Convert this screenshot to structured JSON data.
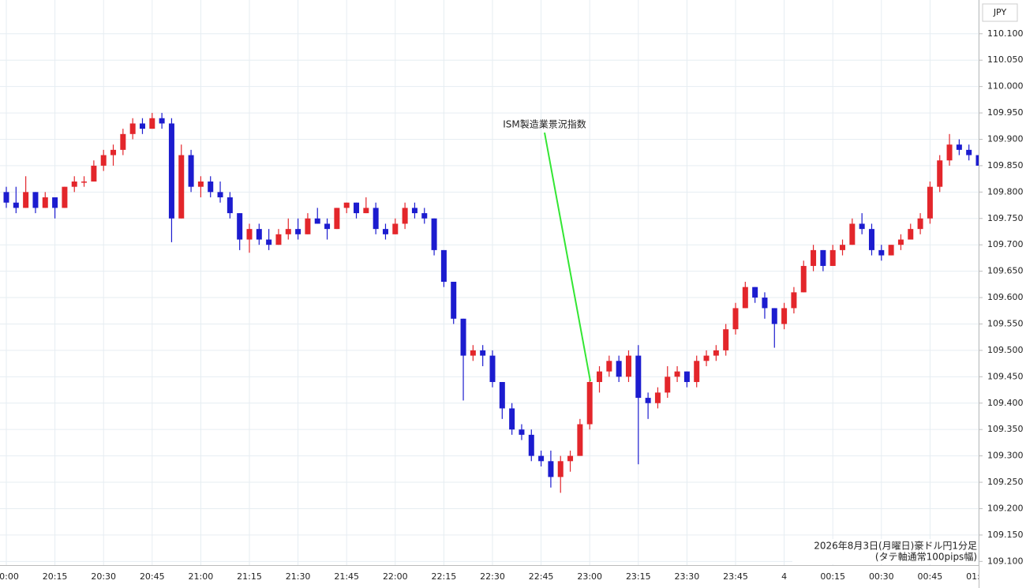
{
  "chart_data": {
    "type": "candlestick",
    "currency": "JPY",
    "annotation": "ISM製造業景況指数",
    "note": [
      "2026年8月3日(月曜日)豪ドル円1分足",
      "(タテ軸通常100pips幅)"
    ],
    "up_color": "#e3262b",
    "down_color": "#1c1ccf",
    "grid": true,
    "x": [
      "20:00",
      "20:03",
      "20:06",
      "20:09",
      "20:12",
      "20:15",
      "20:18",
      "20:21",
      "20:24",
      "20:27",
      "20:30",
      "20:33",
      "20:36",
      "20:39",
      "20:42",
      "20:45",
      "20:48",
      "20:51",
      "20:54",
      "20:57",
      "21:00",
      "21:03",
      "21:06",
      "21:09",
      "21:12",
      "21:15",
      "21:18",
      "21:21",
      "21:24",
      "21:27",
      "21:30",
      "21:33",
      "21:36",
      "21:39",
      "21:42",
      "21:45",
      "21:48",
      "21:51",
      "21:54",
      "21:57",
      "22:00",
      "22:03",
      "22:06",
      "22:09",
      "22:12",
      "22:15",
      "22:18",
      "22:21",
      "22:24",
      "22:27",
      "22:30",
      "22:33",
      "22:36",
      "22:39",
      "22:42",
      "22:45",
      "22:48",
      "22:51",
      "22:54",
      "22:57",
      "23:00",
      "23:03",
      "23:06",
      "23:09",
      "23:12",
      "23:15",
      "23:18",
      "23:21",
      "23:24",
      "23:27",
      "23:30",
      "23:33",
      "23:36",
      "23:39",
      "23:42",
      "23:45",
      "23:48",
      "23:51",
      "23:54",
      "23:57",
      "00:00",
      "00:03",
      "00:06",
      "00:09",
      "00:12",
      "00:15",
      "00:18",
      "00:21",
      "00:24",
      "00:27",
      "00:30",
      "00:33",
      "00:36",
      "00:39",
      "00:42",
      "00:45",
      "00:48",
      "00:51",
      "00:54",
      "00:57",
      "01:00"
    ],
    "open": [
      109.8,
      109.78,
      109.77,
      109.8,
      109.77,
      109.79,
      109.77,
      109.81,
      109.82,
      109.82,
      109.85,
      109.87,
      109.88,
      109.91,
      109.93,
      109.92,
      109.94,
      109.93,
      109.75,
      109.87,
      109.81,
      109.82,
      109.8,
      109.79,
      109.76,
      109.71,
      109.73,
      109.71,
      109.7,
      109.72,
      109.73,
      109.72,
      109.75,
      109.74,
      109.73,
      109.77,
      109.78,
      109.76,
      109.77,
      109.73,
      109.72,
      109.74,
      109.77,
      109.76,
      109.75,
      109.69,
      109.63,
      109.56,
      109.49,
      109.5,
      109.49,
      109.44,
      109.39,
      109.35,
      109.34,
      109.3,
      109.29,
      109.26,
      109.29,
      109.3,
      109.36,
      109.44,
      109.46,
      109.48,
      109.45,
      109.49,
      109.41,
      109.4,
      109.42,
      109.45,
      109.46,
      109.44,
      109.48,
      109.49,
      109.5,
      109.54,
      109.58,
      109.62,
      109.6,
      109.58,
      109.55,
      109.58,
      109.61,
      109.66,
      109.69,
      109.66,
      109.69,
      109.7,
      109.74,
      109.73,
      109.69,
      109.68,
      109.7,
      109.71,
      109.73,
      109.75,
      109.81,
      109.86,
      109.89,
      109.88,
      109.87
    ],
    "high": [
      109.81,
      109.81,
      109.83,
      109.8,
      109.8,
      109.79,
      109.81,
      109.83,
      109.83,
      109.86,
      109.88,
      109.89,
      109.92,
      109.94,
      109.94,
      109.95,
      109.95,
      109.94,
      109.89,
      109.88,
      109.83,
      109.83,
      109.82,
      109.8,
      109.76,
      109.74,
      109.74,
      109.73,
      109.73,
      109.75,
      109.75,
      109.76,
      109.77,
      109.75,
      109.77,
      109.78,
      109.78,
      109.79,
      109.78,
      109.74,
      109.75,
      109.78,
      109.78,
      109.77,
      109.75,
      109.69,
      109.63,
      109.56,
      109.51,
      109.51,
      109.5,
      109.44,
      109.4,
      109.36,
      109.35,
      109.31,
      109.31,
      109.3,
      109.31,
      109.37,
      109.45,
      109.47,
      109.49,
      109.49,
      109.5,
      109.51,
      109.42,
      109.43,
      109.47,
      109.47,
      109.46,
      109.49,
      109.5,
      109.51,
      109.55,
      109.59,
      109.63,
      109.62,
      109.61,
      109.58,
      109.59,
      109.62,
      109.67,
      109.7,
      109.69,
      109.7,
      109.71,
      109.75,
      109.76,
      109.74,
      109.7,
      109.7,
      109.72,
      109.74,
      109.76,
      109.82,
      109.87,
      109.91,
      109.9,
      109.89,
      109.87
    ],
    "low": [
      109.77,
      109.76,
      109.77,
      109.76,
      109.77,
      109.75,
      109.77,
      109.8,
      109.81,
      109.82,
      109.84,
      109.85,
      109.87,
      109.9,
      109.91,
      109.92,
      109.92,
      109.705,
      109.75,
      109.8,
      109.79,
      109.79,
      109.78,
      109.75,
      109.69,
      109.685,
      109.7,
      109.69,
      109.7,
      109.71,
      109.71,
      109.72,
      109.74,
      109.71,
      109.73,
      109.76,
      109.75,
      109.76,
      109.72,
      109.71,
      109.72,
      109.73,
      109.75,
      109.74,
      109.68,
      109.62,
      109.55,
      109.405,
      109.48,
      109.47,
      109.43,
      109.37,
      109.34,
      109.33,
      109.29,
      109.28,
      109.24,
      109.23,
      109.27,
      109.3,
      109.35,
      109.42,
      109.45,
      109.44,
      109.44,
      109.284,
      109.37,
      109.39,
      109.41,
      109.44,
      109.43,
      109.43,
      109.47,
      109.48,
      109.49,
      109.53,
      109.58,
      109.59,
      109.56,
      109.505,
      109.54,
      109.57,
      109.61,
      109.65,
      109.65,
      109.66,
      109.68,
      109.7,
      109.72,
      109.68,
      109.67,
      109.68,
      109.69,
      109.71,
      109.72,
      109.74,
      109.8,
      109.85,
      109.87,
      109.86,
      109.85
    ],
    "close": [
      109.78,
      109.77,
      109.8,
      109.77,
      109.79,
      109.77,
      109.81,
      109.82,
      109.82,
      109.85,
      109.87,
      109.88,
      109.91,
      109.93,
      109.92,
      109.94,
      109.93,
      109.75,
      109.87,
      109.81,
      109.82,
      109.8,
      109.79,
      109.76,
      109.71,
      109.73,
      109.71,
      109.7,
      109.72,
      109.73,
      109.72,
      109.75,
      109.74,
      109.73,
      109.77,
      109.78,
      109.76,
      109.77,
      109.73,
      109.72,
      109.74,
      109.77,
      109.76,
      109.75,
      109.69,
      109.63,
      109.56,
      109.49,
      109.5,
      109.49,
      109.44,
      109.39,
      109.35,
      109.34,
      109.3,
      109.29,
      109.26,
      109.29,
      109.3,
      109.36,
      109.44,
      109.46,
      109.48,
      109.45,
      109.49,
      109.41,
      109.4,
      109.42,
      109.45,
      109.46,
      109.44,
      109.48,
      109.49,
      109.5,
      109.54,
      109.58,
      109.62,
      109.6,
      109.58,
      109.55,
      109.58,
      109.61,
      109.66,
      109.69,
      109.66,
      109.69,
      109.7,
      109.74,
      109.73,
      109.69,
      109.68,
      109.7,
      109.71,
      109.73,
      109.75,
      109.81,
      109.86,
      109.89,
      109.88,
      109.87,
      109.85
    ],
    "xticks": [
      "20:00",
      "20:15",
      "20:30",
      "20:45",
      "21:00",
      "21:15",
      "21:30",
      "21:45",
      "22:00",
      "22:15",
      "22:30",
      "22:45",
      "23:00",
      "23:15",
      "23:30",
      "23:45",
      {
        "value": "00:00",
        "label": "4"
      },
      "00:15",
      "00:30",
      "00:45",
      "01:00"
    ],
    "ylim": [
      109.093,
      110.164
    ],
    "yticks": [
      {
        "value": 109.1,
        "label": "109.100"
      },
      {
        "value": 109.15,
        "label": "109.150"
      },
      {
        "value": 109.2,
        "label": "109.200"
      },
      {
        "value": 109.25,
        "label": "109.250"
      },
      {
        "value": 109.3,
        "label": "109.300"
      },
      {
        "value": 109.35,
        "label": "109.350"
      },
      {
        "value": 109.4,
        "label": "109.400"
      },
      {
        "value": 109.45,
        "label": "109.450"
      },
      {
        "value": 109.5,
        "label": "109.500"
      },
      {
        "value": 109.55,
        "label": "109.550"
      },
      {
        "value": 109.6,
        "label": "109.600"
      },
      {
        "value": 109.65,
        "label": "109.650"
      },
      {
        "value": 109.7,
        "label": "109.700"
      },
      {
        "value": 109.75,
        "label": "109.750"
      },
      {
        "value": 109.8,
        "label": "109.800"
      },
      {
        "value": 109.85,
        "label": "109.850"
      },
      {
        "value": 109.9,
        "label": "109.900"
      },
      {
        "value": 109.95,
        "label": "109.950"
      },
      {
        "value": 110.0,
        "label": "110.000"
      },
      {
        "value": 110.05,
        "label": "110.050"
      },
      {
        "value": 110.1,
        "label": "110.100"
      }
    ]
  }
}
